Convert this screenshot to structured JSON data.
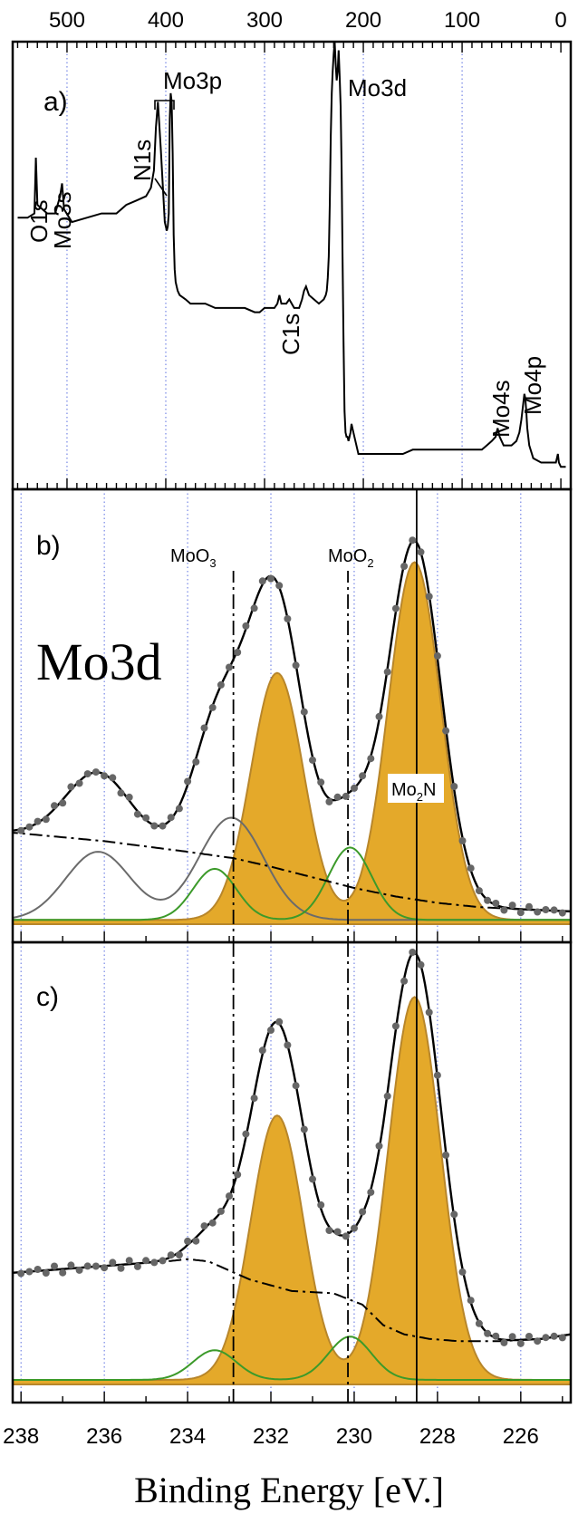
{
  "chart_data": [
    {
      "panel_label": "a)",
      "type": "line",
      "x_axis_ticks": [
        500,
        400,
        300,
        200,
        100,
        0
      ],
      "xlim": [
        555,
        -10
      ],
      "ylim": [
        0,
        1
      ],
      "grid": "vertical dotted blue",
      "peak_labels": [
        {
          "text": "O1s",
          "x": 531
        },
        {
          "text": "Mo3s",
          "x": 505
        },
        {
          "text": "N1s",
          "x": 398
        },
        {
          "text": "Mo3p",
          "x": 395
        },
        {
          "text": "C1s",
          "x": 285
        },
        {
          "text": "Mo3d",
          "x": 229
        },
        {
          "text": "Mo4s",
          "x": 63
        },
        {
          "text": "Mo4p",
          "x": 36
        }
      ],
      "series": [
        {
          "color": "#000000",
          "x": [
            550,
            540,
            533,
            531.5,
            530,
            520,
            512,
            507,
            505,
            503,
            495,
            480,
            465,
            450,
            440,
            430,
            420,
            415,
            412,
            410,
            408,
            405,
            401,
            399,
            398,
            397,
            396,
            395,
            394,
            393,
            392,
            391,
            390,
            389,
            388,
            386,
            380,
            375,
            370,
            365,
            360,
            350,
            340,
            330,
            320,
            310,
            305,
            300,
            295,
            290,
            287,
            285,
            283,
            278,
            275,
            270,
            265,
            262,
            260,
            258,
            255,
            250,
            245,
            240,
            238,
            237,
            236,
            235,
            234,
            233,
            232,
            231,
            230,
            229,
            228,
            227,
            226,
            225,
            224,
            223,
            222,
            221,
            220,
            219,
            218,
            217,
            216,
            215,
            214,
            213,
            212,
            210,
            205,
            200,
            190,
            180,
            170,
            160,
            150,
            140,
            130,
            120,
            110,
            100,
            90,
            80,
            75,
            70,
            66,
            64,
            62,
            58,
            50,
            45,
            42,
            40,
            38,
            37,
            36,
            35,
            34,
            32,
            28,
            20,
            15,
            10,
            8,
            6,
            5,
            4,
            3,
            2,
            0,
            -5
          ],
          "y": [
            0.59,
            0.59,
            0.6,
            0.73,
            0.62,
            0.6,
            0.6,
            0.64,
            0.67,
            0.61,
            0.58,
            0.59,
            0.6,
            0.6,
            0.62,
            0.63,
            0.64,
            0.66,
            0.7,
            0.8,
            0.86,
            0.75,
            0.58,
            0.56,
            0.57,
            0.6,
            0.82,
            0.88,
            0.86,
            0.74,
            0.55,
            0.47,
            0.44,
            0.43,
            0.42,
            0.41,
            0.4,
            0.39,
            0.39,
            0.39,
            0.39,
            0.38,
            0.38,
            0.38,
            0.38,
            0.37,
            0.37,
            0.38,
            0.38,
            0.38,
            0.39,
            0.41,
            0.39,
            0.39,
            0.4,
            0.38,
            0.38,
            0.4,
            0.42,
            0.43,
            0.41,
            0.4,
            0.39,
            0.4,
            0.41,
            0.42,
            0.45,
            0.5,
            0.62,
            0.78,
            0.88,
            0.93,
            0.97,
            1.0,
            0.95,
            0.91,
            0.93,
            0.98,
            0.92,
            0.85,
            0.7,
            0.5,
            0.3,
            0.14,
            0.09,
            0.08,
            0.08,
            0.07,
            0.08,
            0.09,
            0.11,
            0.09,
            0.04,
            0.04,
            0.04,
            0.04,
            0.04,
            0.04,
            0.05,
            0.05,
            0.05,
            0.05,
            0.05,
            0.05,
            0.05,
            0.05,
            0.06,
            0.07,
            0.08,
            0.1,
            0.08,
            0.06,
            0.06,
            0.07,
            0.09,
            0.12,
            0.16,
            0.18,
            0.17,
            0.14,
            0.1,
            0.06,
            0.03,
            0.02,
            0.02,
            0.02,
            0.02,
            0.02,
            0.02,
            0.03,
            0.04,
            0.02,
            0.01,
            0.01
          ]
        }
      ]
    },
    {
      "panel_label": "b)",
      "type": "line",
      "panel_title": "Mo3d",
      "x_axis_ticks": [
        238,
        236,
        234,
        232,
        230,
        228,
        226
      ],
      "xlim": [
        238.2,
        224.8
      ],
      "ylim": [
        0,
        1
      ],
      "grid": "vertical dotted blue",
      "reference_lines": [
        {
          "label": "MoO3",
          "x": 232.9,
          "style": "dash-dot"
        },
        {
          "label": "MoO2",
          "x": 230.15,
          "style": "dash-dot"
        },
        {
          "label": "Mo2N",
          "x": 228.5,
          "style": "solid"
        }
      ],
      "components": [
        {
          "name": "Mo2N",
          "color": "#e4a92a",
          "style": "filled",
          "peaks": [
            {
              "center": 228.55,
              "amplitude": 0.84,
              "sigma": 0.63
            },
            {
              "center": 231.85,
              "amplitude": 0.58,
              "sigma": 0.63
            }
          ]
        },
        {
          "name": "MoO2",
          "color": "#3c9a2a",
          "style": "line",
          "peaks": [
            {
              "center": 230.1,
              "amplitude": 0.17,
              "sigma": 0.52
            },
            {
              "center": 233.35,
              "amplitude": 0.12,
              "sigma": 0.52
            }
          ]
        },
        {
          "name": "MoO3",
          "color": "#6b6b6b",
          "style": "line",
          "peaks": [
            {
              "center": 232.95,
              "amplitude": 0.24,
              "sigma": 0.78
            },
            {
              "center": 236.15,
              "amplitude": 0.16,
              "sigma": 0.78
            }
          ]
        }
      ],
      "background": {
        "style": "dash-dot",
        "x": [
          238.2,
          236,
          234,
          232.9,
          232,
          231,
          230,
          229,
          228,
          227,
          226,
          224.8
        ],
        "y": [
          0.215,
          0.195,
          0.17,
          0.155,
          0.135,
          0.11,
          0.085,
          0.065,
          0.05,
          0.04,
          0.035,
          0.03
        ]
      },
      "data_points_color": "#666666"
    },
    {
      "panel_label": "c)",
      "type": "line",
      "x_axis_ticks": [
        238,
        236,
        234,
        232,
        230,
        228,
        226
      ],
      "xlim": [
        238.2,
        224.8
      ],
      "ylim": [
        0,
        1
      ],
      "grid": "vertical dotted blue",
      "xlabel": "Binding Energy [eV.]",
      "reference_lines": [
        {
          "x": 232.9,
          "style": "dash-dot"
        },
        {
          "x": 230.15,
          "style": "dash-dot"
        },
        {
          "x": 228.5,
          "style": "solid"
        }
      ],
      "components": [
        {
          "name": "Mo2N",
          "color": "#e4a92a",
          "style": "filled",
          "peaks": [
            {
              "center": 228.55,
              "amplitude": 0.84,
              "sigma": 0.63
            },
            {
              "center": 231.85,
              "amplitude": 0.58,
              "sigma": 0.63
            }
          ]
        },
        {
          "name": "MoO2",
          "color": "#3c9a2a",
          "style": "line",
          "peaks": [
            {
              "center": 230.1,
              "amplitude": 0.095,
              "sigma": 0.52
            },
            {
              "center": 233.35,
              "amplitude": 0.065,
              "sigma": 0.52
            }
          ]
        }
      ],
      "background": {
        "style": "dash-dot",
        "x": [
          238.2,
          236,
          234.5,
          234,
          233.5,
          232.5,
          231.5,
          230.5,
          229.8,
          229.3,
          228.8,
          228.2,
          227.5,
          226.5,
          225.5,
          224.8
        ],
        "y": [
          0.245,
          0.26,
          0.27,
          0.275,
          0.27,
          0.23,
          0.205,
          0.2,
          0.175,
          0.13,
          0.11,
          0.1,
          0.095,
          0.095,
          0.1,
          0.11
        ]
      },
      "data_points_color": "#666666"
    }
  ]
}
